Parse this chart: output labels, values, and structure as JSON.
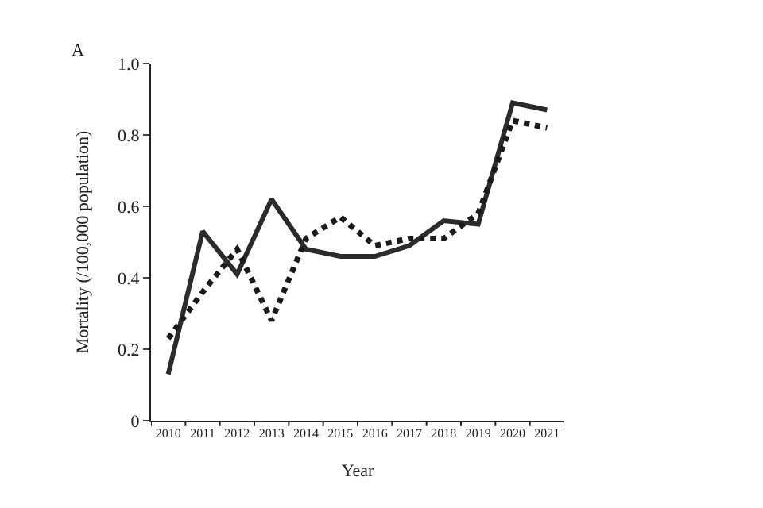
{
  "chart_data": {
    "type": "line",
    "xlabel": "Year",
    "ylabel": "Mortality (/100,000 population)",
    "annotations": [
      "A"
    ],
    "categories": [
      "2010",
      "2011",
      "2012",
      "2013",
      "2014",
      "2015",
      "2016",
      "2017",
      "2018",
      "2019",
      "2020",
      "2021"
    ],
    "series": [
      {
        "color": "#2b2b2b",
        "line_style": "solid",
        "values": [
          0.13,
          0.53,
          0.41,
          0.62,
          0.48,
          0.46,
          0.46,
          0.49,
          0.56,
          0.55,
          0.89,
          0.87
        ]
      },
      {
        "color": "#1a1a1a",
        "line_style": "dotted",
        "values": [
          0.23,
          0.36,
          0.48,
          0.28,
          0.51,
          0.57,
          0.49,
          0.51,
          0.51,
          0.58,
          0.84,
          0.82
        ]
      }
    ],
    "ylim": [
      0,
      1.0
    ],
    "yticks": [
      0,
      0.2,
      0.4,
      0.6,
      0.8,
      {
        "value": 1.0,
        "label": "1.0"
      }
    ],
    "marker": "none"
  }
}
